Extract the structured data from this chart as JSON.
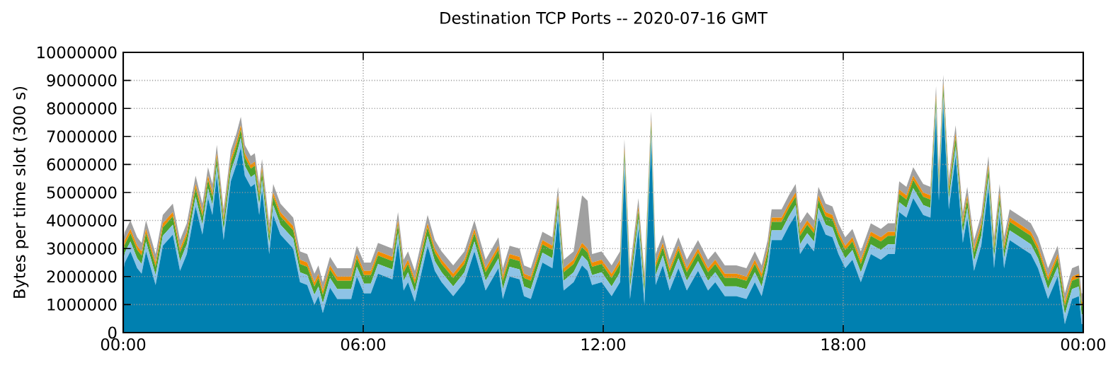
{
  "chart_data": {
    "type": "area",
    "title": "Destination TCP Ports -- 2020-07-16 GMT",
    "ylabel": "Bytes per time slot (300 s)",
    "stacked": true,
    "grid": true,
    "xlim": [
      0,
      24
    ],
    "xticks": [
      {
        "value": 0,
        "label": "00:00"
      },
      {
        "value": 6,
        "label": "06:00"
      },
      {
        "value": 12,
        "label": "12:00"
      },
      {
        "value": 18,
        "label": "18:00"
      },
      {
        "value": 24,
        "label": "00:00"
      }
    ],
    "ylim": [
      0,
      10000000
    ],
    "yticks": [
      0,
      1000000,
      2000000,
      3000000,
      4000000,
      5000000,
      6000000,
      7000000,
      8000000,
      9000000,
      10000000
    ],
    "x": [
      0,
      0.04,
      0.18,
      0.35,
      0.46,
      0.57,
      0.81,
      0.99,
      1.24,
      1.42,
      1.59,
      1.81,
      1.98,
      2.12,
      2.23,
      2.34,
      2.51,
      2.69,
      2.83,
      2.94,
      3.04,
      3.19,
      3.29,
      3.4,
      3.47,
      3.65,
      3.75,
      3.93,
      4.25,
      4.42,
      4.6,
      4.78,
      4.88,
      4.99,
      5.17,
      5.35,
      5.7,
      5.84,
      6.02,
      6.19,
      6.37,
      6.73,
      6.87,
      7.01,
      7.12,
      7.29,
      7.61,
      7.79,
      7.96,
      8.25,
      8.53,
      8.78,
      9.06,
      9.38,
      9.49,
      9.66,
      9.91,
      10.02,
      10.19,
      10.48,
      10.73,
      10.87,
      11.01,
      11.26,
      11.47,
      11.61,
      11.72,
      11.96,
      12.21,
      12.42,
      12.53,
      12.67,
      12.88,
      13.03,
      13.2,
      13.31,
      13.49,
      13.66,
      13.88,
      14.09,
      14.37,
      14.62,
      14.8,
      15.04,
      15.33,
      15.58,
      15.79,
      15.96,
      16.11,
      16.21,
      16.46,
      16.64,
      16.81,
      16.92,
      17.1,
      17.27,
      17.38,
      17.56,
      17.73,
      17.88,
      18.05,
      18.23,
      18.44,
      18.69,
      18.94,
      19.12,
      19.29,
      19.4,
      19.58,
      19.75,
      20.0,
      20.18,
      20.32,
      20.39,
      20.5,
      20.64,
      20.81,
      20.99,
      21.1,
      21.27,
      21.45,
      21.63,
      21.77,
      21.91,
      22.02,
      22.16,
      22.48,
      22.69,
      22.87,
      23.12,
      23.36,
      23.54,
      23.72,
      23.89,
      23.96,
      24
    ],
    "series": [
      {
        "color": "#0080b0",
        "values": [
          2200000,
          2500000,
          2900000,
          2300000,
          2100000,
          2900000,
          1700000,
          3100000,
          3500000,
          2200000,
          2800000,
          4500000,
          3500000,
          4800000,
          4200000,
          5600000,
          3300000,
          5400000,
          6000000,
          6600000,
          5600000,
          5200000,
          5300000,
          4200000,
          5100000,
          2800000,
          4200000,
          3500000,
          3000000,
          1800000,
          1700000,
          1000000,
          1300000,
          700000,
          1600000,
          1200000,
          1200000,
          2000000,
          1400000,
          1400000,
          2100000,
          1900000,
          3200000,
          1500000,
          1800000,
          1100000,
          3100000,
          2200000,
          1800000,
          1300000,
          1800000,
          2900000,
          1500000,
          2300000,
          1200000,
          2000000,
          1900000,
          1300000,
          1200000,
          2500000,
          2300000,
          4100000,
          1500000,
          1800000,
          2400000,
          2200000,
          1700000,
          1800000,
          1300000,
          1800000,
          5800000,
          1200000,
          3700000,
          1000000,
          6800000,
          1700000,
          2400000,
          1500000,
          2300000,
          1500000,
          2200000,
          1500000,
          1800000,
          1300000,
          1300000,
          1200000,
          1800000,
          1300000,
          2200000,
          3300000,
          3300000,
          3800000,
          4200000,
          2800000,
          3200000,
          2900000,
          4100000,
          3500000,
          3400000,
          2800000,
          2300000,
          2600000,
          1800000,
          2800000,
          2600000,
          2800000,
          2800000,
          4300000,
          4100000,
          4800000,
          4200000,
          4100000,
          7700000,
          4700000,
          8100000,
          4400000,
          6300000,
          3200000,
          4100000,
          2200000,
          3100000,
          5200000,
          2300000,
          4200000,
          2300000,
          3300000,
          3000000,
          2800000,
          2300000,
          1200000,
          2000000,
          300000,
          1200000,
          1300000,
          300000,
          300000
        ]
      },
      {
        "color": "#8ec3e6",
        "values": [
          350000,
          350000,
          350000,
          350000,
          350000,
          350000,
          350000,
          350000,
          350000,
          350000,
          350000,
          350000,
          350000,
          350000,
          350000,
          350000,
          350000,
          350000,
          350000,
          350000,
          350000,
          350000,
          350000,
          350000,
          350000,
          350000,
          350000,
          350000,
          350000,
          350000,
          350000,
          350000,
          350000,
          350000,
          350000,
          350000,
          350000,
          350000,
          350000,
          350000,
          350000,
          350000,
          350000,
          350000,
          350000,
          350000,
          350000,
          350000,
          350000,
          350000,
          350000,
          350000,
          350000,
          350000,
          350000,
          350000,
          350000,
          350000,
          350000,
          350000,
          350000,
          350000,
          350000,
          350000,
          350000,
          350000,
          350000,
          350000,
          350000,
          350000,
          350000,
          350000,
          350000,
          350000,
          350000,
          350000,
          350000,
          350000,
          350000,
          350000,
          350000,
          350000,
          350000,
          350000,
          350000,
          350000,
          350000,
          350000,
          350000,
          350000,
          350000,
          350000,
          350000,
          350000,
          350000,
          350000,
          350000,
          350000,
          350000,
          350000,
          350000,
          350000,
          350000,
          350000,
          350000,
          350000,
          350000,
          350000,
          350000,
          350000,
          350000,
          350000,
          350000,
          350000,
          350000,
          350000,
          350000,
          350000,
          350000,
          350000,
          350000,
          350000,
          350000,
          350000,
          350000,
          350000,
          350000,
          350000,
          350000,
          350000,
          350000,
          350000,
          350000,
          350000,
          350000,
          350000
        ]
      },
      {
        "color": "#4ca22c",
        "values": [
          300000,
          300000,
          300000,
          300000,
          300000,
          300000,
          300000,
          300000,
          300000,
          300000,
          300000,
          300000,
          300000,
          300000,
          300000,
          300000,
          300000,
          300000,
          300000,
          300000,
          300000,
          300000,
          300000,
          300000,
          300000,
          300000,
          300000,
          300000,
          300000,
          300000,
          300000,
          300000,
          300000,
          300000,
          300000,
          300000,
          300000,
          300000,
          300000,
          300000,
          300000,
          300000,
          300000,
          300000,
          300000,
          300000,
          300000,
          300000,
          300000,
          300000,
          300000,
          300000,
          300000,
          300000,
          300000,
          300000,
          300000,
          300000,
          300000,
          300000,
          300000,
          300000,
          300000,
          300000,
          300000,
          300000,
          300000,
          300000,
          300000,
          300000,
          300000,
          300000,
          300000,
          300000,
          300000,
          300000,
          300000,
          300000,
          300000,
          300000,
          300000,
          300000,
          300000,
          300000,
          300000,
          300000,
          300000,
          300000,
          300000,
          300000,
          300000,
          300000,
          300000,
          300000,
          300000,
          300000,
          300000,
          300000,
          300000,
          300000,
          300000,
          300000,
          300000,
          300000,
          300000,
          300000,
          300000,
          300000,
          300000,
          300000,
          300000,
          300000,
          300000,
          300000,
          300000,
          300000,
          300000,
          300000,
          300000,
          300000,
          300000,
          300000,
          300000,
          300000,
          300000,
          300000,
          300000,
          300000,
          300000,
          300000,
          300000,
          300000,
          300000,
          300000,
          300000,
          300000
        ]
      },
      {
        "color": "#f08c00",
        "values": [
          150000,
          150000,
          150000,
          150000,
          150000,
          150000,
          150000,
          150000,
          150000,
          150000,
          150000,
          150000,
          150000,
          150000,
          150000,
          150000,
          150000,
          150000,
          150000,
          150000,
          150000,
          150000,
          150000,
          150000,
          150000,
          150000,
          150000,
          150000,
          150000,
          150000,
          150000,
          150000,
          150000,
          150000,
          150000,
          150000,
          150000,
          150000,
          150000,
          150000,
          150000,
          150000,
          150000,
          150000,
          150000,
          150000,
          150000,
          150000,
          150000,
          150000,
          150000,
          150000,
          150000,
          150000,
          150000,
          150000,
          150000,
          150000,
          150000,
          150000,
          150000,
          150000,
          150000,
          150000,
          150000,
          150000,
          150000,
          150000,
          150000,
          150000,
          150000,
          150000,
          150000,
          150000,
          150000,
          150000,
          150000,
          150000,
          150000,
          150000,
          150000,
          150000,
          150000,
          150000,
          150000,
          150000,
          150000,
          150000,
          150000,
          150000,
          150000,
          150000,
          150000,
          150000,
          150000,
          150000,
          150000,
          150000,
          150000,
          150000,
          150000,
          150000,
          150000,
          150000,
          150000,
          150000,
          150000,
          150000,
          150000,
          150000,
          150000,
          150000,
          150000,
          150000,
          150000,
          150000,
          150000,
          150000,
          150000,
          150000,
          150000,
          150000,
          150000,
          150000,
          150000,
          150000,
          150000,
          150000,
          150000,
          150000,
          150000,
          150000,
          150000,
          150000,
          150000,
          150000
        ]
      },
      {
        "color": "#a0a0a0",
        "values": [
          300000,
          300000,
          300000,
          300000,
          300000,
          300000,
          300000,
          300000,
          300000,
          300000,
          300000,
          300000,
          300000,
          300000,
          300000,
          300000,
          300000,
          300000,
          300000,
          300000,
          300000,
          300000,
          300000,
          300000,
          300000,
          300000,
          300000,
          300000,
          300000,
          300000,
          300000,
          300000,
          300000,
          300000,
          300000,
          300000,
          300000,
          300000,
          300000,
          300000,
          300000,
          300000,
          300000,
          300000,
          300000,
          300000,
          300000,
          300000,
          300000,
          300000,
          300000,
          300000,
          300000,
          300000,
          300000,
          300000,
          300000,
          300000,
          300000,
          300000,
          300000,
          300000,
          300000,
          300000,
          1700000,
          1700000,
          300000,
          300000,
          300000,
          300000,
          300000,
          300000,
          300000,
          300000,
          300000,
          300000,
          300000,
          300000,
          300000,
          300000,
          300000,
          300000,
          300000,
          300000,
          300000,
          300000,
          300000,
          300000,
          300000,
          300000,
          300000,
          300000,
          300000,
          300000,
          300000,
          300000,
          300000,
          300000,
          300000,
          300000,
          300000,
          300000,
          300000,
          300000,
          300000,
          300000,
          300000,
          300000,
          300000,
          300000,
          300000,
          300000,
          300000,
          300000,
          300000,
          300000,
          300000,
          300000,
          300000,
          300000,
          300000,
          300000,
          300000,
          300000,
          300000,
          300000,
          300000,
          300000,
          300000,
          300000,
          300000,
          300000,
          300000,
          300000,
          300000,
          300000
        ]
      }
    ]
  }
}
